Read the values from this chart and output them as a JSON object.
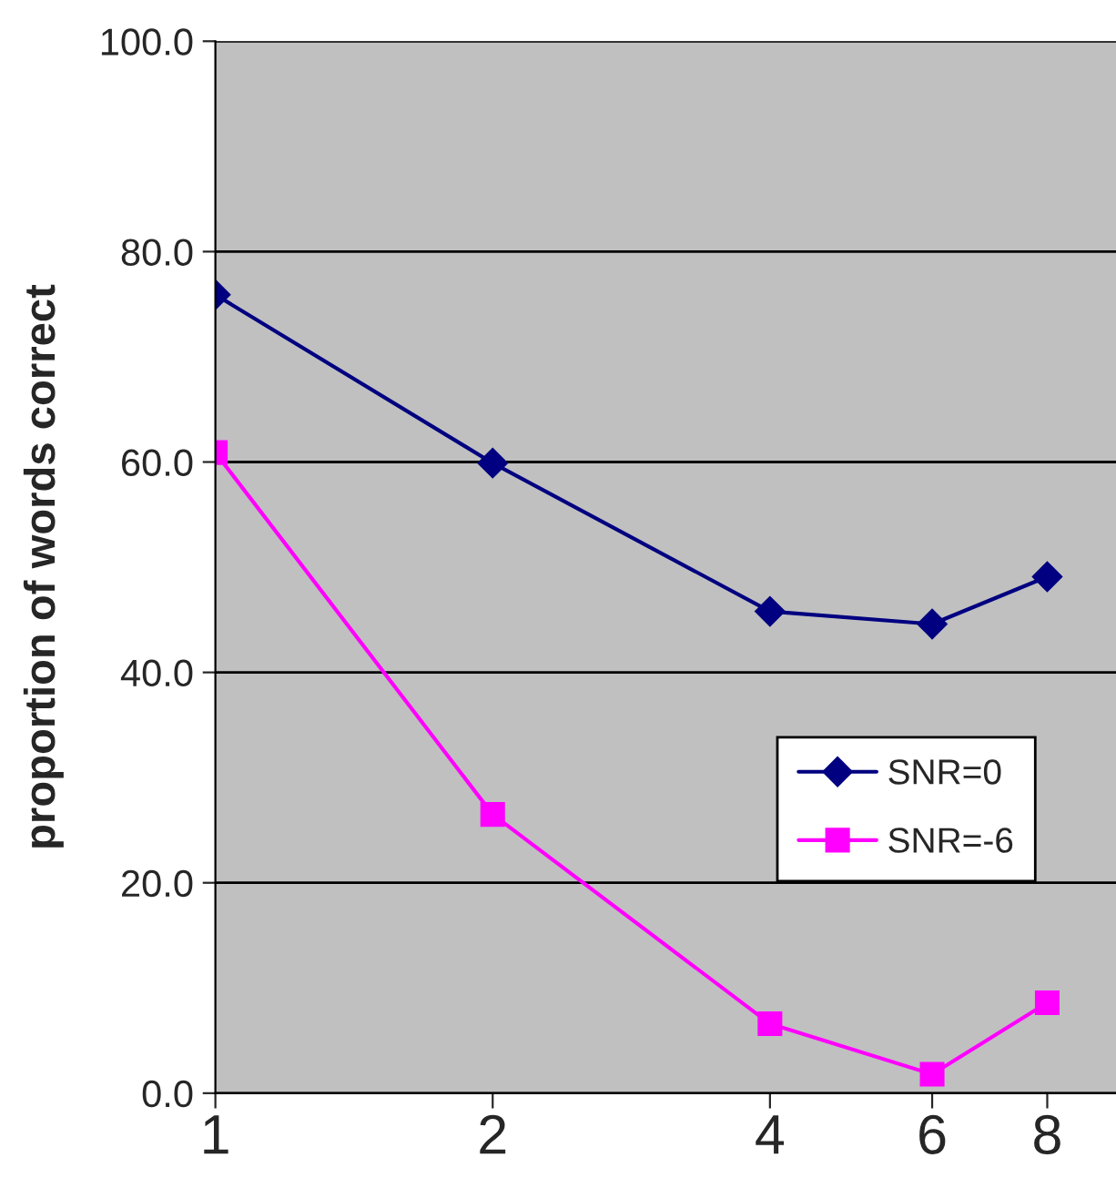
{
  "chart_data": {
    "type": "line",
    "ylabel": "proportion of words correct",
    "x": [
      1,
      2,
      4,
      6,
      8
    ],
    "log": "x",
    "xlim": [
      1,
      9.5
    ],
    "xticks": [
      1,
      2,
      4,
      6,
      8
    ],
    "ylim": [
      0,
      100
    ],
    "yticks": [
      {
        "value": 0,
        "label": "0.0"
      },
      {
        "value": 20,
        "label": "20.0"
      },
      {
        "value": 40,
        "label": "40.0"
      },
      {
        "value": 60,
        "label": "60.0"
      },
      {
        "value": 80,
        "label": "80.0"
      },
      {
        "value": 100,
        "label": "100.0"
      }
    ],
    "grid": "y",
    "legend": "right",
    "series": [
      {
        "name": "SNR=0",
        "color": "#000080",
        "marker": "diamond",
        "values": [
          75.9,
          59.9,
          45.8,
          44.6,
          49.1
        ]
      },
      {
        "name": "SNR=-6",
        "color": "#ff00ff",
        "marker": "square",
        "values": [
          60.9,
          26.5,
          6.6,
          1.8,
          8.6
        ]
      }
    ]
  }
}
